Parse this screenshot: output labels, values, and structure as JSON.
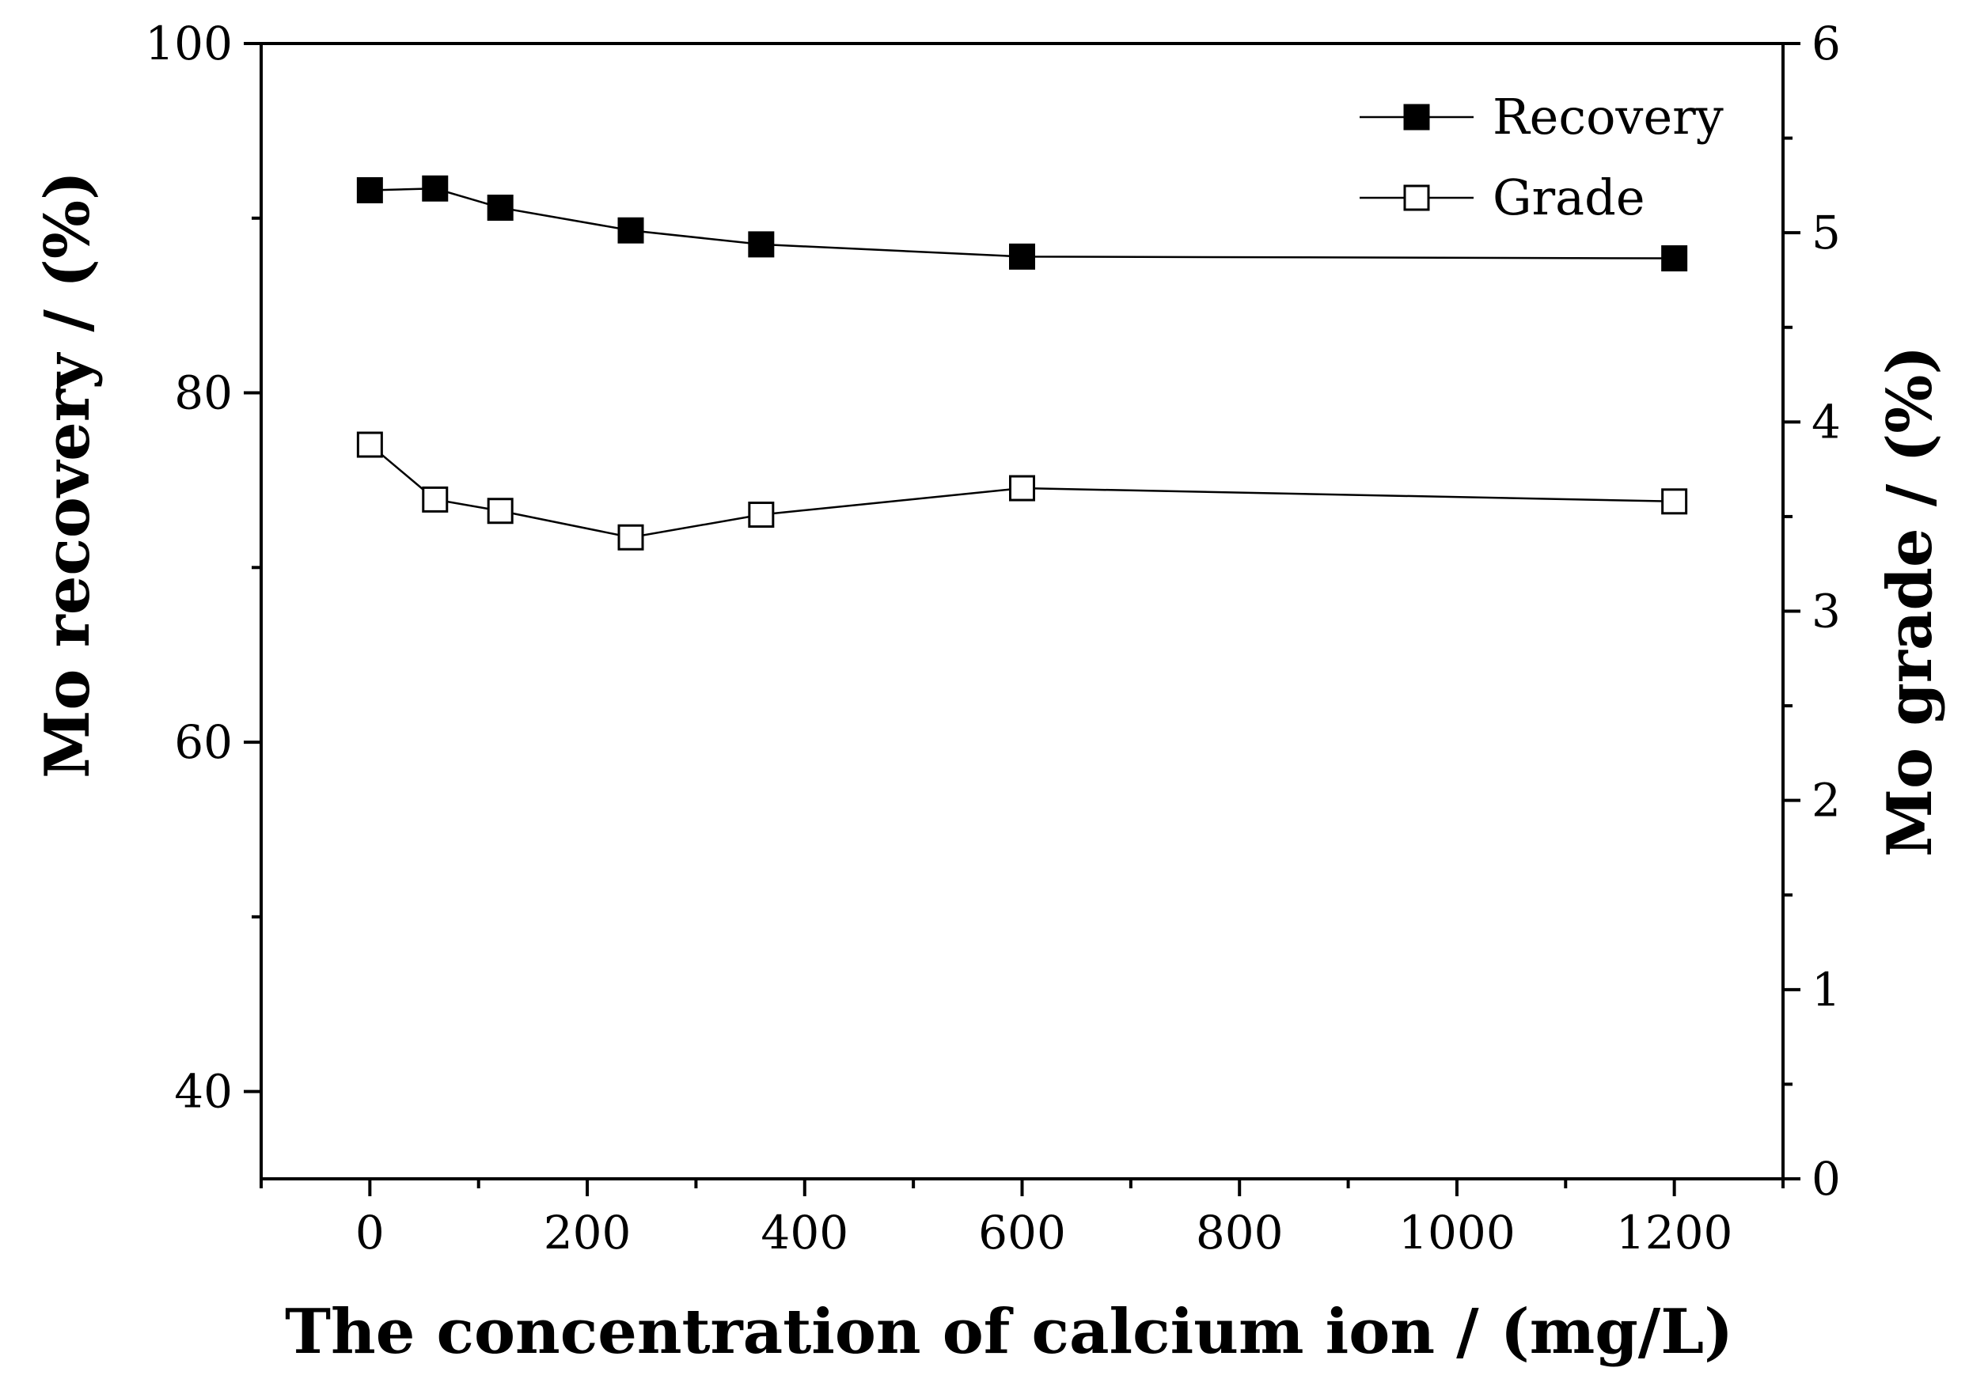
{
  "chart_data": {
    "type": "line",
    "title": "",
    "xlabel": "The concentration of calcium ion / (mg/L)",
    "ylabel_left": "Mo recovery  / (%)",
    "ylabel_right": "Mo grade / (%)",
    "xlim": [
      -100,
      1300
    ],
    "ylim_left": [
      35,
      100
    ],
    "ylim_right": [
      0,
      6
    ],
    "x_ticks": [
      0,
      200,
      400,
      600,
      800,
      1000,
      1200
    ],
    "y_left_ticks": [
      40,
      60,
      80,
      100
    ],
    "y_right_ticks": [
      0,
      1,
      2,
      3,
      4,
      5,
      6
    ],
    "grid": false,
    "legend_position": "top-right",
    "series": [
      {
        "name": "Recovery",
        "axis": "left",
        "marker": "filled-square",
        "x": [
          0,
          60,
          120,
          240,
          360,
          600,
          1200
        ],
        "y": [
          91.6,
          91.7,
          90.6,
          89.3,
          88.5,
          87.8,
          87.7
        ]
      },
      {
        "name": "Grade",
        "axis": "right",
        "marker": "open-square",
        "x": [
          0,
          60,
          120,
          240,
          360,
          600,
          1200
        ],
        "y": [
          3.88,
          3.59,
          3.53,
          3.39,
          3.51,
          3.65,
          3.58
        ]
      }
    ]
  }
}
